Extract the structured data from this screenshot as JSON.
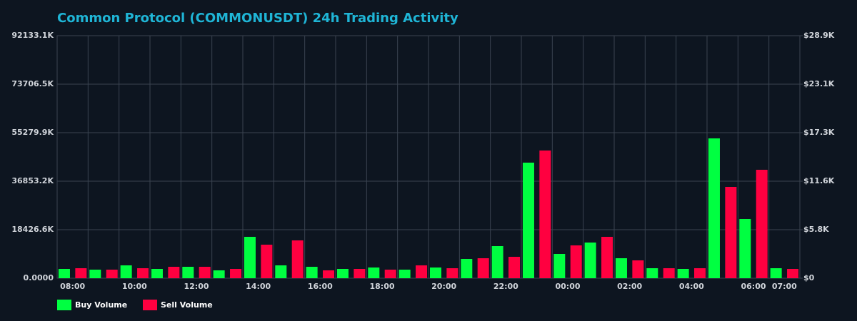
{
  "chart_data": {
    "type": "bar",
    "title": "Common Protocol (COMMONUSDT) 24h Trading Activity",
    "categories": [
      "08:00",
      null,
      "10:00",
      null,
      "12:00",
      null,
      "14:00",
      null,
      "16:00",
      null,
      "18:00",
      null,
      "20:00",
      null,
      "22:00",
      null,
      "00:00",
      null,
      "02:00",
      null,
      "04:00",
      null,
      "06:00",
      "07:00"
    ],
    "series": [
      {
        "name": "Buy Volume",
        "color": "#00ff41",
        "values": [
          3523000,
          3252000,
          4878000,
          3523000,
          4336000,
          2981000,
          15717000,
          4878000,
          4336000,
          3523000,
          4065000,
          3252000,
          4065000,
          7316000,
          12194000,
          43899000,
          9213000,
          13549000,
          7587000,
          3794000,
          3523000,
          53112000,
          22491000,
          3794000
        ]
      },
      {
        "name": "Sell Volume",
        "color": "#ff0040",
        "values": [
          3794000,
          3252000,
          3794000,
          4336000,
          4336000,
          3523000,
          12736000,
          14362000,
          2981000,
          3523000,
          3252000,
          4878000,
          3794000,
          7587000,
          8129000,
          48505000,
          12465000,
          15717000,
          6775000,
          3794000,
          3794000,
          34685000,
          41189000,
          3523000
        ]
      }
    ],
    "ylim": [
      0,
      92133100
    ],
    "yticks": [
      {
        "value": 0,
        "label": "0.0000"
      },
      {
        "value": 18426600,
        "label": "18426.6K"
      },
      {
        "value": 36853200,
        "label": "36853.2K"
      },
      {
        "value": 55279900,
        "label": "55279.9K"
      },
      {
        "value": 73706500,
        "label": "73706.5K"
      },
      {
        "value": 92133100,
        "label": "92133.1K"
      }
    ],
    "y2lim": [
      0,
      28900
    ],
    "y2ticks": [
      {
        "value": 0,
        "label": "$0"
      },
      {
        "value": 5780,
        "label": "$5.8K"
      },
      {
        "value": 11560,
        "label": "$11.6K"
      },
      {
        "value": 17340,
        "label": "$17.3K"
      },
      {
        "value": 23120,
        "label": "$23.1K"
      },
      {
        "value": 28900,
        "label": "$28.9K"
      }
    ],
    "grid": true,
    "legend": "bottom-left"
  }
}
